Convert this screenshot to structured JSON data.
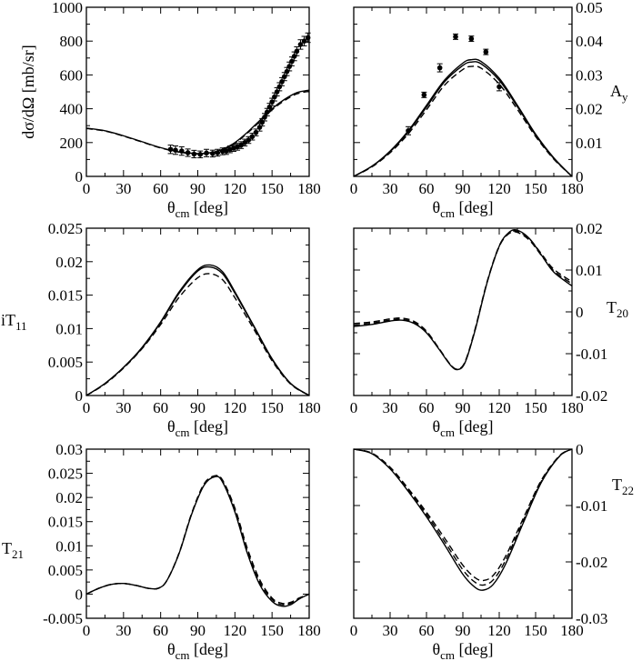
{
  "chart_data": [
    {
      "id": "dsigma",
      "type": "scatter",
      "ylabel": "dσ/dΩ [mb/sr]",
      "xlabel_main": "θ",
      "xlabel_sub": "cm",
      "xlabel_unit": "[deg]",
      "xlim": [
        0,
        180
      ],
      "ylim": [
        0,
        1000
      ],
      "xticks": [
        0,
        30,
        60,
        90,
        120,
        150,
        180
      ],
      "yticks": [
        0,
        200,
        400,
        600,
        800,
        1000
      ],
      "ytick_labels": [
        "0",
        "200",
        "400",
        "600",
        "800",
        "1000"
      ],
      "ylabel_side": "left",
      "series": [
        {
          "name": "solid",
          "style": "solid",
          "x": [
            0,
            15,
            30,
            45,
            60,
            75,
            90,
            100,
            110,
            120,
            130,
            140,
            150,
            160,
            170,
            180
          ],
          "y": [
            285,
            270,
            240,
            205,
            170,
            145,
            135,
            140,
            160,
            200,
            260,
            330,
            400,
            455,
            495,
            510
          ]
        },
        {
          "name": "dashed",
          "style": "dashed",
          "x": [
            0,
            15,
            30,
            45,
            60,
            75,
            90,
            100,
            110,
            120,
            130,
            140,
            150,
            160,
            170,
            180
          ],
          "y": [
            283,
            268,
            238,
            203,
            168,
            143,
            133,
            138,
            157,
            196,
            255,
            324,
            393,
            448,
            488,
            503
          ]
        },
        {
          "name": "data",
          "style": "points",
          "x": [
            68,
            72,
            77,
            82,
            87,
            92,
            97,
            102,
            106,
            110,
            113,
            116,
            119,
            122,
            125,
            128,
            131,
            134,
            137,
            140,
            142,
            144,
            146,
            148,
            150,
            152,
            154,
            156,
            158,
            160,
            162,
            164,
            166,
            168,
            170,
            173,
            176,
            179
          ],
          "y": [
            160,
            155,
            150,
            140,
            132,
            130,
            138,
            135,
            140,
            148,
            150,
            160,
            168,
            175,
            185,
            200,
            215,
            235,
            260,
            290,
            320,
            350,
            380,
            410,
            440,
            470,
            500,
            530,
            560,
            590,
            620,
            650,
            680,
            710,
            740,
            780,
            800,
            820
          ],
          "err": [
            25,
            25,
            25,
            22,
            22,
            20,
            22,
            20,
            20,
            20,
            20,
            20,
            20,
            20,
            20,
            20,
            20,
            20,
            20,
            22,
            22,
            22,
            22,
            22,
            22,
            24,
            24,
            24,
            24,
            24,
            24,
            26,
            26,
            26,
            26,
            28,
            28,
            28
          ]
        }
      ]
    },
    {
      "id": "Ay",
      "type": "scatter",
      "ylabel": "A",
      "ylabel_sub": "y",
      "xlabel_main": "θ",
      "xlabel_sub": "cm",
      "xlabel_unit": "[deg]",
      "xlim": [
        0,
        180
      ],
      "ylim": [
        0,
        0.05
      ],
      "xticks": [
        0,
        30,
        60,
        90,
        120,
        150,
        180
      ],
      "yticks": [
        0,
        0.01,
        0.02,
        0.03,
        0.04,
        0.05
      ],
      "ytick_labels": [
        "0",
        "0.01",
        "0.02",
        "0.03",
        "0.04",
        "0.05"
      ],
      "ylabel_side": "right",
      "series": [
        {
          "name": "solid",
          "style": "solid",
          "x": [
            0,
            15,
            30,
            45,
            60,
            75,
            90,
            97,
            105,
            120,
            135,
            150,
            165,
            180
          ],
          "y": [
            0,
            0.003,
            0.0075,
            0.0135,
            0.021,
            0.0285,
            0.0335,
            0.0345,
            0.034,
            0.029,
            0.021,
            0.0125,
            0.0055,
            0
          ]
        },
        {
          "name": "solid2",
          "style": "solid",
          "x": [
            0,
            15,
            30,
            45,
            60,
            75,
            90,
            97,
            105,
            120,
            135,
            150,
            165,
            180
          ],
          "y": [
            0,
            0.003,
            0.0073,
            0.0132,
            0.0205,
            0.028,
            0.0328,
            0.0338,
            0.0333,
            0.0284,
            0.0206,
            0.0122,
            0.0053,
            0
          ]
        },
        {
          "name": "dashed",
          "style": "dashed",
          "x": [
            0,
            15,
            30,
            45,
            60,
            75,
            90,
            97,
            105,
            120,
            135,
            150,
            165,
            180
          ],
          "y": [
            0,
            0.0028,
            0.007,
            0.0126,
            0.0197,
            0.027,
            0.0316,
            0.0325,
            0.032,
            0.0273,
            0.0198,
            0.0118,
            0.0051,
            0
          ]
        },
        {
          "name": "data",
          "style": "points",
          "x": [
            45,
            58,
            71,
            84,
            97,
            109,
            120
          ],
          "y": [
            0.0135,
            0.0241,
            0.0321,
            0.0413,
            0.0407,
            0.0368,
            0.0265
          ],
          "err": [
            0.0012,
            0.0008,
            0.0012,
            0.0008,
            0.0008,
            0.0008,
            0.0012
          ]
        }
      ]
    },
    {
      "id": "iT11",
      "type": "line",
      "ylabel": "iT",
      "ylabel_sub": "11",
      "xlabel_main": "θ",
      "xlabel_sub": "cm",
      "xlabel_unit": "[deg]",
      "xlim": [
        0,
        180
      ],
      "ylim": [
        0,
        0.025
      ],
      "xticks": [
        0,
        30,
        60,
        90,
        120,
        150,
        180
      ],
      "yticks": [
        0,
        0.005,
        0.01,
        0.015,
        0.02,
        0.025
      ],
      "ytick_labels": [
        "0",
        "0.005",
        "0.01",
        "0.015",
        "0.02",
        "0.025"
      ],
      "ylabel_side": "left",
      "series": [
        {
          "name": "solid",
          "style": "solid",
          "x": [
            0,
            15,
            30,
            45,
            60,
            75,
            90,
            100,
            110,
            120,
            135,
            150,
            165,
            180
          ],
          "y": [
            0,
            0.0018,
            0.0042,
            0.0072,
            0.011,
            0.0155,
            0.0188,
            0.0195,
            0.0185,
            0.0155,
            0.0105,
            0.0055,
            0.0018,
            0
          ]
        },
        {
          "name": "solid2",
          "style": "solid",
          "x": [
            0,
            15,
            30,
            45,
            60,
            75,
            90,
            100,
            110,
            120,
            135,
            150,
            165,
            180
          ],
          "y": [
            0,
            0.0018,
            0.0042,
            0.0071,
            0.0109,
            0.0153,
            0.0186,
            0.0192,
            0.0182,
            0.0153,
            0.0104,
            0.0054,
            0.0018,
            0
          ]
        },
        {
          "name": "dashed",
          "style": "dashed",
          "x": [
            0,
            15,
            30,
            45,
            60,
            75,
            90,
            100,
            110,
            120,
            135,
            150,
            165,
            180
          ],
          "y": [
            0,
            0.0017,
            0.0041,
            0.007,
            0.0106,
            0.0147,
            0.0176,
            0.0182,
            0.0173,
            0.0146,
            0.01,
            0.0052,
            0.0017,
            0
          ]
        }
      ]
    },
    {
      "id": "T20",
      "type": "line",
      "ylabel": "T",
      "ylabel_sub": "20",
      "xlabel_main": "θ",
      "xlabel_sub": "cm",
      "xlabel_unit": "[deg]",
      "xlim": [
        0,
        180
      ],
      "ylim": [
        -0.02,
        0.02
      ],
      "xticks": [
        0,
        30,
        60,
        90,
        120,
        150,
        180
      ],
      "yticks": [
        -0.02,
        -0.01,
        0,
        0.01,
        0.02
      ],
      "ytick_labels": [
        "-0.02",
        "-0.01",
        "0",
        "0.01",
        "0.02"
      ],
      "ylabel_side": "right",
      "series": [
        {
          "name": "solid",
          "style": "solid",
          "x": [
            0,
            15,
            30,
            40,
            50,
            60,
            70,
            80,
            86,
            92,
            100,
            110,
            120,
            128,
            135,
            145,
            155,
            165,
            180
          ],
          "y": [
            -0.0035,
            -0.003,
            -0.0022,
            -0.002,
            -0.0028,
            -0.005,
            -0.0088,
            -0.0128,
            -0.0138,
            -0.012,
            -0.0045,
            0.007,
            0.0157,
            0.019,
            0.0195,
            0.0175,
            0.0135,
            0.0095,
            0.0062
          ]
        },
        {
          "name": "dashed",
          "style": "dashed",
          "x": [
            0,
            15,
            30,
            40,
            50,
            60,
            70,
            80,
            86,
            92,
            100,
            110,
            120,
            128,
            135,
            145,
            155,
            165,
            180
          ],
          "y": [
            -0.0028,
            -0.0024,
            -0.0017,
            -0.0015,
            -0.0023,
            -0.0046,
            -0.0086,
            -0.0127,
            -0.0137,
            -0.0118,
            -0.0042,
            0.0072,
            0.0158,
            0.0188,
            0.0192,
            0.0174,
            0.0138,
            0.0102,
            0.0072
          ]
        },
        {
          "name": "dashed2",
          "style": "dashed",
          "x": [
            0,
            15,
            30,
            40,
            50,
            60,
            70,
            80,
            86,
            92,
            100,
            110,
            120,
            128,
            135,
            145,
            155,
            165,
            180
          ],
          "y": [
            -0.0032,
            -0.0027,
            -0.002,
            -0.0018,
            -0.0026,
            -0.0048,
            -0.0087,
            -0.0127,
            -0.0137,
            -0.0119,
            -0.0044,
            0.0071,
            0.0156,
            0.0187,
            0.019,
            0.0171,
            0.0134,
            0.0098,
            0.0067
          ]
        }
      ]
    },
    {
      "id": "T21",
      "type": "line",
      "ylabel": "T",
      "ylabel_sub": "21",
      "xlabel_main": "θ",
      "xlabel_sub": "cm",
      "xlabel_unit": "[deg]",
      "xlim": [
        0,
        180
      ],
      "ylim": [
        -0.005,
        0.03
      ],
      "xticks": [
        0,
        30,
        60,
        90,
        120,
        150,
        180
      ],
      "yticks": [
        -0.005,
        0,
        0.005,
        0.01,
        0.015,
        0.02,
        0.025,
        0.03
      ],
      "ytick_labels": [
        "-0.005",
        "0",
        "0.005",
        "0.01",
        "0.015",
        "0.02",
        "0.025",
        "0.03"
      ],
      "ylabel_side": "left",
      "series": [
        {
          "name": "solid",
          "style": "solid",
          "x": [
            0,
            10,
            20,
            30,
            40,
            50,
            58,
            65,
            75,
            85,
            95,
            104,
            110,
            120,
            130,
            140,
            150,
            158,
            165,
            172,
            180
          ],
          "y": [
            0,
            0.0012,
            0.002,
            0.0022,
            0.0018,
            0.0012,
            0.0012,
            0.0028,
            0.0085,
            0.0165,
            0.0225,
            0.0243,
            0.0232,
            0.017,
            0.0085,
            0.002,
            -0.0015,
            -0.0025,
            -0.0022,
            -0.001,
            0
          ]
        },
        {
          "name": "dashed",
          "style": "dashed",
          "x": [
            0,
            10,
            20,
            30,
            40,
            50,
            58,
            65,
            75,
            85,
            95,
            104,
            110,
            120,
            130,
            140,
            150,
            158,
            165,
            172,
            180
          ],
          "y": [
            0,
            0.0012,
            0.002,
            0.0022,
            0.0018,
            0.0012,
            0.0012,
            0.0028,
            0.0086,
            0.0167,
            0.0228,
            0.0245,
            0.0236,
            0.0178,
            0.0095,
            0.003,
            -0.0008,
            -0.0019,
            -0.0017,
            -0.0008,
            0
          ]
        },
        {
          "name": "dashed2",
          "style": "dashed",
          "x": [
            0,
            10,
            20,
            30,
            40,
            50,
            58,
            65,
            75,
            85,
            95,
            104,
            110,
            120,
            130,
            140,
            150,
            158,
            165,
            172,
            180
          ],
          "y": [
            0,
            0.0012,
            0.002,
            0.0022,
            0.0018,
            0.0012,
            0.0012,
            0.0028,
            0.0085,
            0.0166,
            0.0226,
            0.0244,
            0.0234,
            0.0174,
            0.009,
            0.0025,
            -0.0011,
            -0.0022,
            -0.0019,
            -0.0009,
            0
          ]
        }
      ]
    },
    {
      "id": "T22",
      "type": "line",
      "ylabel": "T",
      "ylabel_sub": "22",
      "xlabel_main": "θ",
      "xlabel_sub": "cm",
      "xlabel_unit": "[deg]",
      "xlim": [
        0,
        180
      ],
      "ylim": [
        -0.03,
        0
      ],
      "xticks": [
        0,
        30,
        60,
        90,
        120,
        150,
        180
      ],
      "yticks": [
        -0.03,
        -0.02,
        -0.01,
        0
      ],
      "ytick_labels": [
        "-0.03",
        "-0.02",
        "-0.01",
        "0"
      ],
      "ylabel_side": "right",
      "series": [
        {
          "name": "solid",
          "style": "solid",
          "x": [
            0,
            15,
            30,
            45,
            60,
            75,
            90,
            100,
            107,
            115,
            125,
            140,
            155,
            170,
            180
          ],
          "y": [
            0,
            -0.0008,
            -0.0035,
            -0.0075,
            -0.012,
            -0.017,
            -0.0222,
            -0.0245,
            -0.025,
            -0.024,
            -0.0205,
            -0.013,
            -0.0058,
            -0.0012,
            0
          ]
        },
        {
          "name": "dashed",
          "style": "dashed",
          "x": [
            0,
            15,
            30,
            45,
            60,
            75,
            90,
            100,
            107,
            115,
            125,
            140,
            155,
            170,
            180
          ],
          "y": [
            0,
            -0.0007,
            -0.0032,
            -0.007,
            -0.0112,
            -0.0158,
            -0.0206,
            -0.0228,
            -0.0233,
            -0.0224,
            -0.0191,
            -0.0122,
            -0.0054,
            -0.0011,
            0
          ]
        },
        {
          "name": "dashed2",
          "style": "dashed",
          "x": [
            0,
            15,
            30,
            45,
            60,
            75,
            90,
            100,
            107,
            115,
            125,
            140,
            155,
            170,
            180
          ],
          "y": [
            0,
            -0.00075,
            -0.0034,
            -0.0073,
            -0.0116,
            -0.0164,
            -0.0214,
            -0.0236,
            -0.0241,
            -0.0232,
            -0.0198,
            -0.0126,
            -0.0056,
            -0.0012,
            0
          ]
        }
      ]
    }
  ]
}
